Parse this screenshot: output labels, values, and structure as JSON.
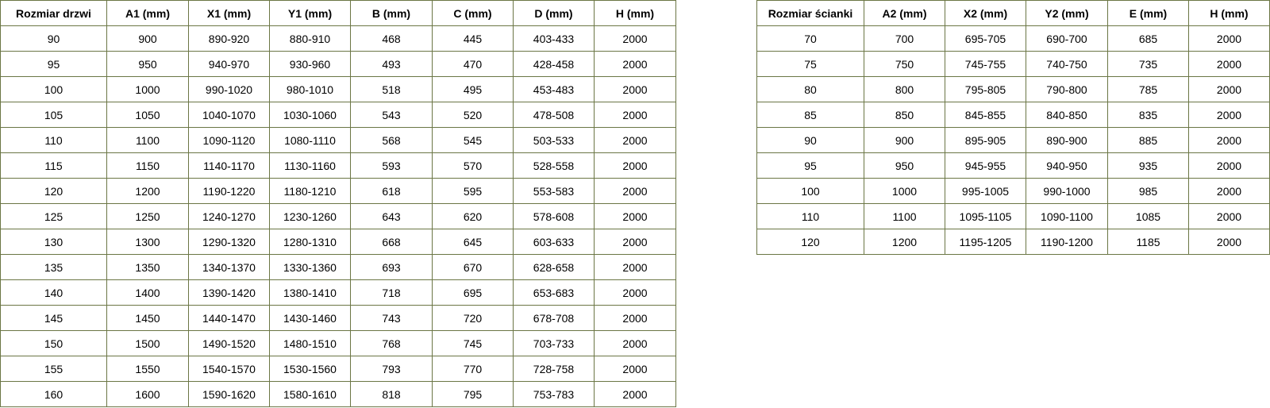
{
  "left_table": {
    "header": [
      "Rozmiar drzwi",
      "A1 (mm)",
      "X1 (mm)",
      "Y1 (mm)",
      "B (mm)",
      "C (mm)",
      "D (mm)",
      "H (mm)"
    ],
    "rows": [
      [
        "90",
        "900",
        "890-920",
        "880-910",
        "468",
        "445",
        "403-433",
        "2000"
      ],
      [
        "95",
        "950",
        "940-970",
        "930-960",
        "493",
        "470",
        "428-458",
        "2000"
      ],
      [
        "100",
        "1000",
        "990-1020",
        "980-1010",
        "518",
        "495",
        "453-483",
        "2000"
      ],
      [
        "105",
        "1050",
        "1040-1070",
        "1030-1060",
        "543",
        "520",
        "478-508",
        "2000"
      ],
      [
        "110",
        "1100",
        "1090-1120",
        "1080-1110",
        "568",
        "545",
        "503-533",
        "2000"
      ],
      [
        "115",
        "1150",
        "1140-1170",
        "1130-1160",
        "593",
        "570",
        "528-558",
        "2000"
      ],
      [
        "120",
        "1200",
        "1190-1220",
        "1180-1210",
        "618",
        "595",
        "553-583",
        "2000"
      ],
      [
        "125",
        "1250",
        "1240-1270",
        "1230-1260",
        "643",
        "620",
        "578-608",
        "2000"
      ],
      [
        "130",
        "1300",
        "1290-1320",
        "1280-1310",
        "668",
        "645",
        "603-633",
        "2000"
      ],
      [
        "135",
        "1350",
        "1340-1370",
        "1330-1360",
        "693",
        "670",
        "628-658",
        "2000"
      ],
      [
        "140",
        "1400",
        "1390-1420",
        "1380-1410",
        "718",
        "695",
        "653-683",
        "2000"
      ],
      [
        "145",
        "1450",
        "1440-1470",
        "1430-1460",
        "743",
        "720",
        "678-708",
        "2000"
      ],
      [
        "150",
        "1500",
        "1490-1520",
        "1480-1510",
        "768",
        "745",
        "703-733",
        "2000"
      ],
      [
        "155",
        "1550",
        "1540-1570",
        "1530-1560",
        "793",
        "770",
        "728-758",
        "2000"
      ],
      [
        "160",
        "1600",
        "1590-1620",
        "1580-1610",
        "818",
        "795",
        "753-783",
        "2000"
      ]
    ]
  },
  "right_table": {
    "header": [
      "Rozmiar ścianki",
      "A2 (mm)",
      "X2 (mm)",
      "Y2 (mm)",
      "E (mm)",
      "H (mm)"
    ],
    "rows": [
      [
        "70",
        "700",
        "695-705",
        "690-700",
        "685",
        "2000"
      ],
      [
        "75",
        "750",
        "745-755",
        "740-750",
        "735",
        "2000"
      ],
      [
        "80",
        "800",
        "795-805",
        "790-800",
        "785",
        "2000"
      ],
      [
        "85",
        "850",
        "845-855",
        "840-850",
        "835",
        "2000"
      ],
      [
        "90",
        "900",
        "895-905",
        "890-900",
        "885",
        "2000"
      ],
      [
        "95",
        "950",
        "945-955",
        "940-950",
        "935",
        "2000"
      ],
      [
        "100",
        "1000",
        "995-1005",
        "990-1000",
        "985",
        "2000"
      ],
      [
        "110",
        "1100",
        "1095-1105",
        "1090-1100",
        "1085",
        "2000"
      ],
      [
        "120",
        "1200",
        "1195-1205",
        "1190-1200",
        "1185",
        "2000"
      ]
    ]
  }
}
